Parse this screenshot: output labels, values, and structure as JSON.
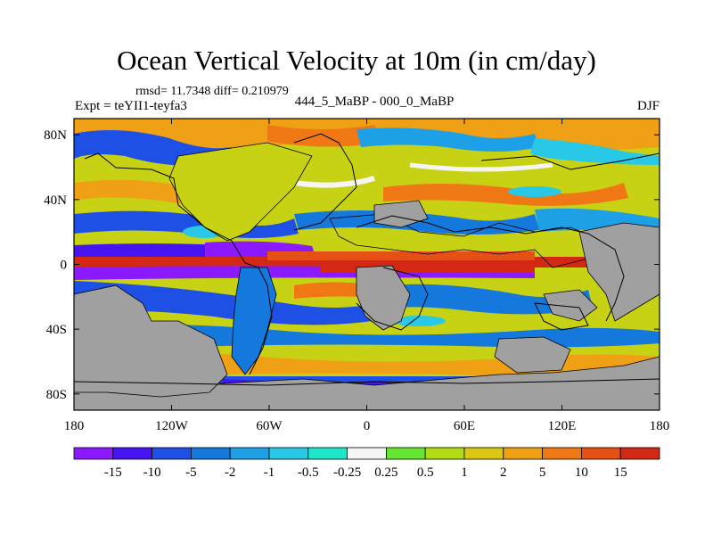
{
  "title": "Ocean Vertical Velocity at 10m (in cm/day)",
  "stats_line": "rmsd= 11.7348 diff= 0.210979",
  "experiment": "Expt = teYII1-teyfa3",
  "difference_label": "444_5_MaBP - 000_0_MaBP",
  "season": "DJF",
  "map": {
    "lon_ticks": [
      {
        "lon": -180,
        "label": "180"
      },
      {
        "lon": -120,
        "label": "120W"
      },
      {
        "lon": -60,
        "label": "60W"
      },
      {
        "lon": 0,
        "label": "0"
      },
      {
        "lon": 60,
        "label": "60E"
      },
      {
        "lon": 120,
        "label": "120E"
      },
      {
        "lon": 180,
        "label": "180"
      }
    ],
    "lat_ticks": [
      {
        "lat": 80,
        "label": "80N"
      },
      {
        "lat": 40,
        "label": "40N"
      },
      {
        "lat": 0,
        "label": "0"
      },
      {
        "lat": -40,
        "label": "40S"
      },
      {
        "lat": -80,
        "label": "80S"
      }
    ],
    "lon_range": [
      -180,
      180
    ],
    "lat_range": [
      -90,
      90
    ]
  },
  "colorbar": {
    "labels": [
      "-15",
      "-10",
      "-5",
      "-2",
      "-1",
      "-0.5",
      "-0.25",
      "0.25",
      "0.5",
      "1",
      "2",
      "5",
      "10",
      "15"
    ],
    "colors": [
      "#8c1aff",
      "#4614f0",
      "#1e50e6",
      "#1478dc",
      "#1ea0e6",
      "#28c8e6",
      "#1ee6c8",
      "#f5f5f5",
      "#64e632",
      "#b4dc14",
      "#dcc814",
      "#f0a014",
      "#f07814",
      "#e65014",
      "#d22814"
    ]
  },
  "colors": {
    "land": "#a0a0a0",
    "coast": "#000000"
  }
}
